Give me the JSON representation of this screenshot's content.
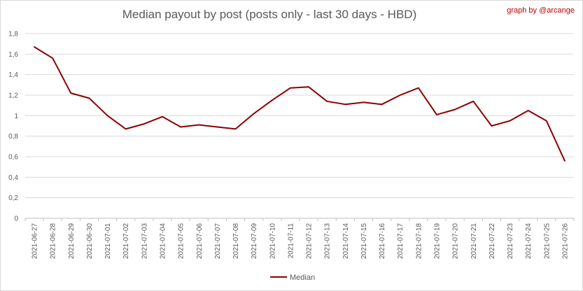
{
  "title": "Median payout by post (posts only - last 30 days - HBD)",
  "credit": "graph by @arcange",
  "chart_data": {
    "type": "line",
    "title": "Median payout by post (posts only - last 30 days - HBD)",
    "xlabel": "",
    "ylabel": "",
    "ylim": [
      0,
      1.8
    ],
    "y_ticks": [
      "0",
      "0,2",
      "0,4",
      "0,6",
      "0,8",
      "1",
      "1,2",
      "1,4",
      "1,6",
      "1,8"
    ],
    "grid": true,
    "legend_position": "bottom",
    "categories": [
      "2021-06-27",
      "2021-06-28",
      "2021-06-29",
      "2021-06-30",
      "2021-07-01",
      "2021-07-02",
      "2021-07-03",
      "2021-07-04",
      "2021-07-05",
      "2021-07-06",
      "2021-07-07",
      "2021-07-08",
      "2021-07-09",
      "2021-07-10",
      "2021-07-11",
      "2021-07-12",
      "2021-07-13",
      "2021-07-14",
      "2021-07-15",
      "2021-07-16",
      "2021-07-17",
      "2021-07-18",
      "2021-07-19",
      "2021-07-20",
      "2021-07-21",
      "2021-07-22",
      "2021-07-23",
      "2021-07-24",
      "2021-07-25",
      "2021-07-26"
    ],
    "series": [
      {
        "name": "Median",
        "color": "#8b0000",
        "values": [
          1.67,
          1.56,
          1.22,
          1.17,
          1.0,
          0.87,
          0.92,
          0.99,
          0.89,
          0.91,
          0.89,
          0.87,
          1.02,
          1.15,
          1.27,
          1.28,
          1.14,
          1.11,
          1.13,
          1.11,
          1.2,
          1.27,
          1.01,
          1.06,
          1.14,
          0.9,
          0.95,
          1.05,
          0.95,
          0.56
        ]
      }
    ]
  }
}
